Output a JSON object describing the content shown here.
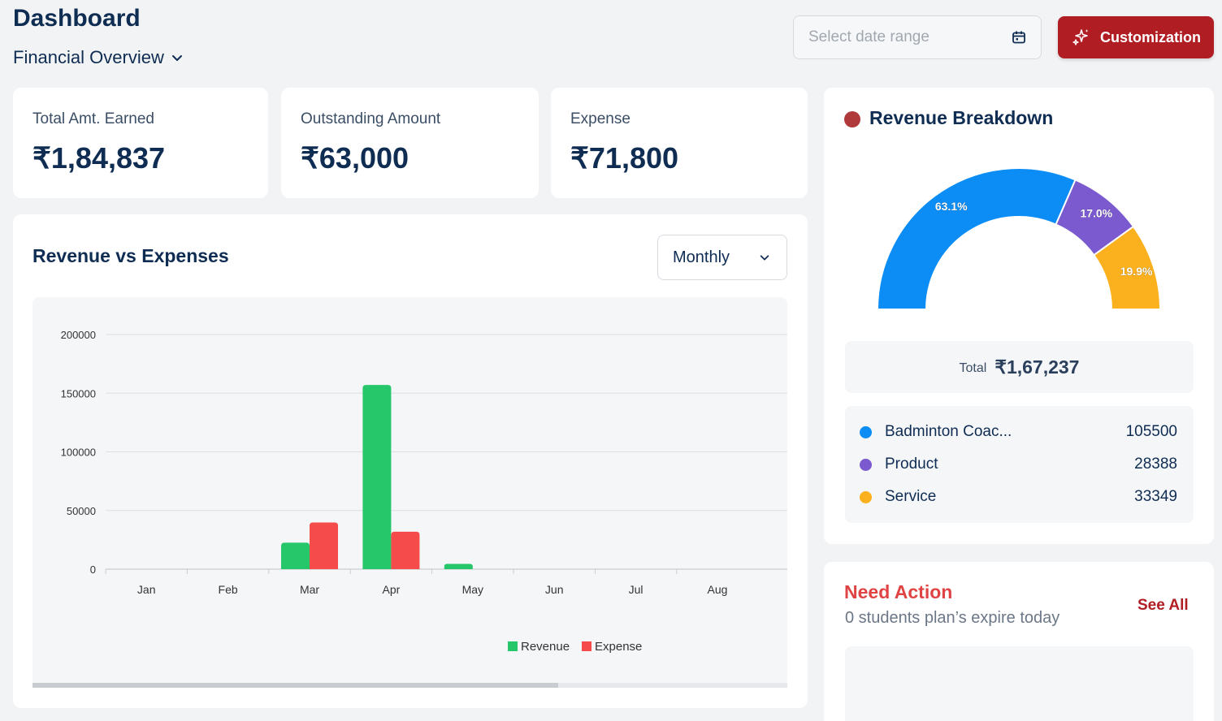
{
  "header": {
    "title": "Dashboard",
    "overview_label": "Financial Overview",
    "date_placeholder": "Select date range",
    "customize_label": "Customization"
  },
  "stats": [
    {
      "label": "Total Amt. Earned",
      "value": "₹1,84,837"
    },
    {
      "label": "Outstanding Amount",
      "value": "₹63,000"
    },
    {
      "label": "Expense",
      "value": "₹71,800"
    }
  ],
  "revenue_vs_expenses": {
    "title": "Revenue vs Expenses",
    "period": "Monthly"
  },
  "breakdown": {
    "title": "Revenue Breakdown",
    "total_label": "Total",
    "total_value": "₹1,67,237",
    "items": [
      {
        "name": "Badminton Coac...",
        "value": "105500",
        "color": "#0b8df5"
      },
      {
        "name": "Product",
        "value": "28388",
        "color": "#7b59cf"
      },
      {
        "name": "Service",
        "value": "33349",
        "color": "#fbb01d"
      }
    ],
    "gauge_labels": [
      "63.1%",
      "17.0%",
      "19.9%"
    ]
  },
  "need_action": {
    "title": "Need Action",
    "subtitle": "0 students plan’s expire today",
    "see_all": "See All"
  },
  "chart_data": {
    "type": "bar",
    "categories": [
      "Jan",
      "Feb",
      "Mar",
      "Apr",
      "May",
      "Jun",
      "Jul",
      "Aug"
    ],
    "series": [
      {
        "name": "Revenue",
        "color": "#26c66b",
        "values": [
          0,
          0,
          22600,
          157000,
          4500,
          0,
          0,
          0
        ]
      },
      {
        "name": "Expense",
        "color": "#f54b4b",
        "values": [
          0,
          0,
          39800,
          31900,
          0,
          0,
          0,
          0
        ]
      }
    ],
    "yticks": [
      0,
      50000,
      100000,
      150000,
      200000
    ],
    "ylim": [
      0,
      200000
    ],
    "grid": true,
    "legend_position": "bottom"
  }
}
